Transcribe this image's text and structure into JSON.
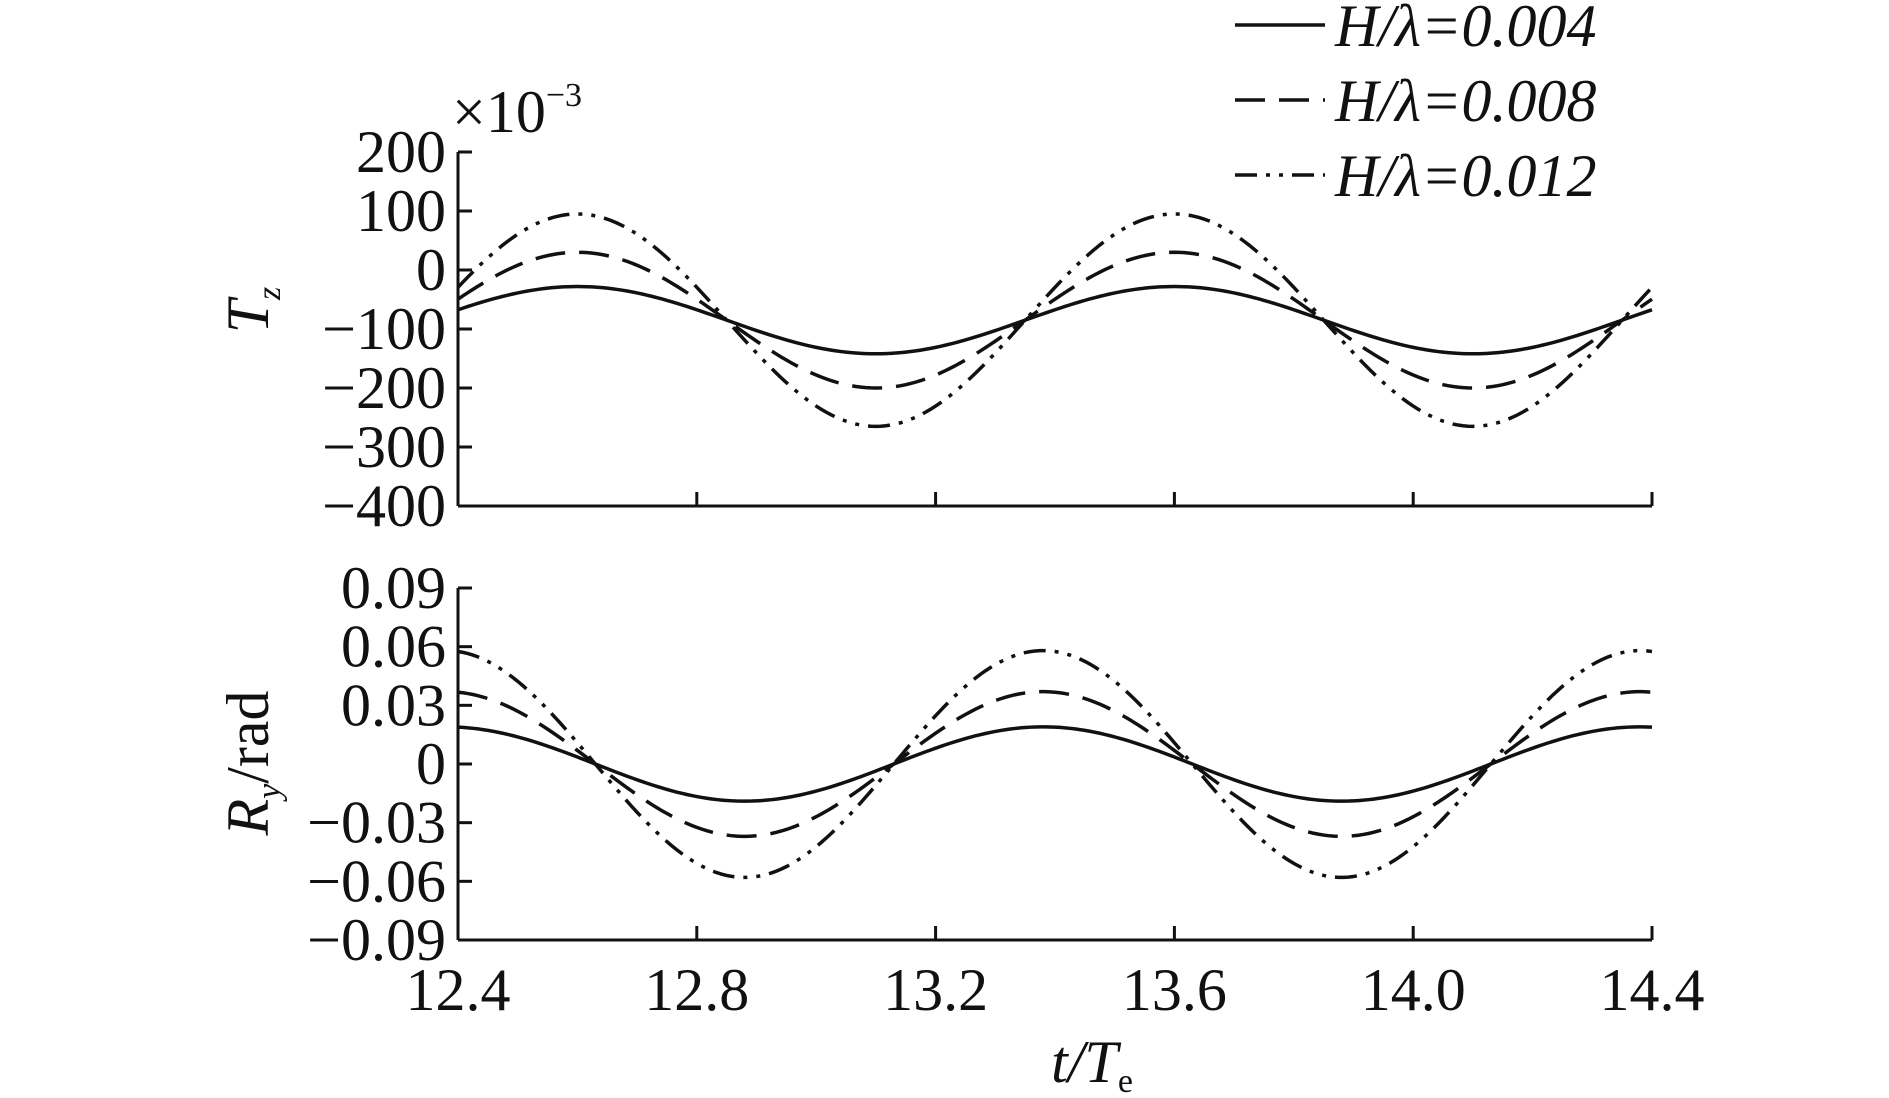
{
  "legend": [
    {
      "label": "H/λ=0.004",
      "style": "solid"
    },
    {
      "label": "H/λ=0.008",
      "style": "dashed"
    },
    {
      "label": "H/λ=0.012",
      "style": "dashdotdot"
    }
  ],
  "xlabel": {
    "main": "t/T",
    "sub": "e"
  },
  "chart_data": [
    {
      "type": "line",
      "panel": "top",
      "ylabel": {
        "main": "T",
        "sub": "z"
      },
      "multiplier": "×10",
      "multiplier_exp": "−3",
      "xlim": [
        12.4,
        14.4
      ],
      "ylim": [
        -400,
        200
      ],
      "xticks": [
        12.4,
        12.8,
        13.2,
        13.6,
        14.0,
        14.4
      ],
      "yticks": [
        200,
        100,
        0,
        -100,
        -200,
        -300,
        -400
      ],
      "ytick_labels": [
        "200",
        "100",
        "0",
        "−100",
        "−200",
        "−300",
        "−400"
      ],
      "period": 1.0,
      "series": [
        {
          "name": "H/λ=0.004",
          "offset": -85,
          "amplitude": 57,
          "peak_t": 12.6
        },
        {
          "name": "H/λ=0.008",
          "offset": -85,
          "amplitude": 115,
          "peak_t": 12.6
        },
        {
          "name": "H/λ=0.012",
          "offset": -85,
          "amplitude": 180,
          "peak_t": 12.6
        }
      ]
    },
    {
      "type": "line",
      "panel": "bottom",
      "ylabel": {
        "main": "R",
        "sub": "y",
        "suffix": "/rad"
      },
      "xlim": [
        12.4,
        14.4
      ],
      "ylim": [
        -0.09,
        0.09
      ],
      "xticks": [
        12.4,
        12.8,
        13.2,
        13.6,
        14.0,
        14.4
      ],
      "xtick_labels": [
        "12.4",
        "12.8",
        "13.2",
        "13.6",
        "14.0",
        "14.4"
      ],
      "yticks": [
        0.09,
        0.06,
        0.03,
        0,
        -0.03,
        -0.06,
        -0.09
      ],
      "ytick_labels": [
        "0.09",
        "0.06",
        "0.03",
        "0",
        "−0.03",
        "−0.06",
        "−0.09"
      ],
      "period": 1.0,
      "series": [
        {
          "name": "H/λ=0.004",
          "offset": 0,
          "amplitude": 0.019,
          "peak_t": 13.38
        },
        {
          "name": "H/λ=0.008",
          "offset": 0,
          "amplitude": 0.037,
          "peak_t": 13.38
        },
        {
          "name": "H/λ=0.012",
          "offset": 0,
          "amplitude": 0.058,
          "peak_t": 13.38
        }
      ]
    }
  ]
}
